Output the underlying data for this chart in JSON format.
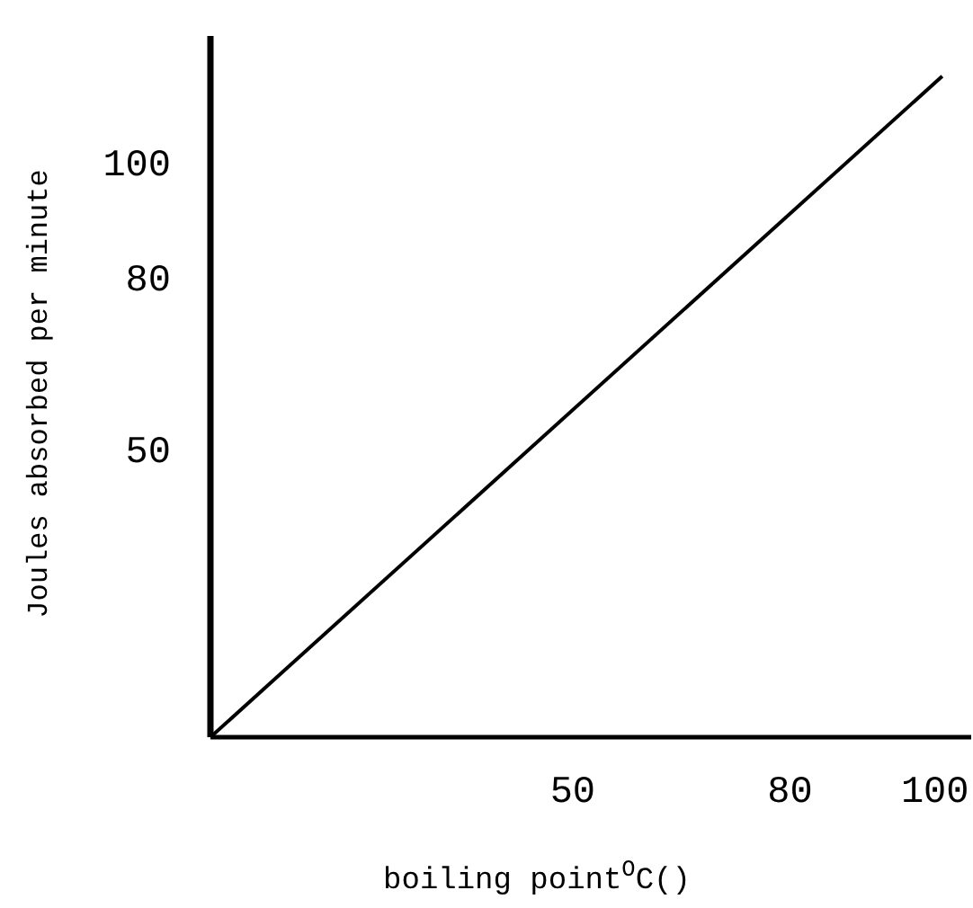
{
  "chart_data": {
    "type": "line",
    "xlabel": "boiling point$^{O}$C()",
    "ylabel": "Joules absorbed per minute",
    "x": [
      0,
      101
    ],
    "series": [
      {
        "color": "#000000",
        "values": [
          0,
          115
        ]
      }
    ],
    "xlim": [
      0,
      105
    ],
    "ylim": [
      0,
      122
    ],
    "xticks": [
      50,
      80,
      100
    ],
    "yticks": [
      50,
      80,
      100
    ],
    "grid": false,
    "marker": "none",
    "line_style": "solid"
  }
}
